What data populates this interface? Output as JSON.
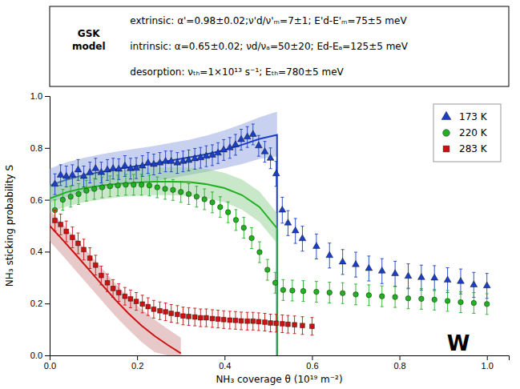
{
  "chart_data": {
    "type": "line",
    "xlabel": "NH₃ coverage θ (10¹⁹ m⁻²)",
    "ylabel": "NH₃ sticking probability S",
    "annotations": [
      "W",
      "GSK\nmodel",
      "extrinsic: α'=0.98±0.02;ν'd/ν'ₘ=7±1; E'd-E'ₘ=75±5 meV",
      "intrinsic: α=0.65±0.02; νd/νₐ=50±20; Ed-Eₐ=125±5 meV",
      "desorption: νₜₕ=1×10¹³ s⁻¹; Eₜₕ=780±5 meV"
    ],
    "xlim": [
      0.0,
      1.05
    ],
    "ylim": [
      0.0,
      1.0
    ],
    "xticks": [
      {
        "value": 0.0,
        "label": "0.0"
      },
      0.2,
      0.4,
      0.6,
      0.8,
      {
        "value": 1.0,
        "label": "1.0"
      }
    ],
    "yticks": [
      {
        "value": 0.0,
        "label": "0.0"
      },
      0.2,
      0.4,
      0.6,
      0.8,
      {
        "value": 1.0,
        "label": "1.0"
      }
    ],
    "grid": false,
    "legend": "upper right",
    "series": [
      {
        "type": "area",
        "color": "#8899dd",
        "x": [
          0.0,
          0.04,
          0.08,
          0.12,
          0.16,
          0.2,
          0.24,
          0.28,
          0.32,
          0.36,
          0.4,
          0.44,
          0.48,
          0.52
        ],
        "upper": [
          0.72,
          0.745,
          0.762,
          0.776,
          0.788,
          0.798,
          0.808,
          0.82,
          0.832,
          0.848,
          0.868,
          0.892,
          0.918,
          0.94
        ],
        "lower": [
          0.59,
          0.612,
          0.628,
          0.641,
          0.652,
          0.662,
          0.672,
          0.684,
          0.696,
          0.708,
          0.722,
          0.738,
          0.758,
          0.768
        ]
      },
      {
        "type": "line",
        "color": "#1a3fc4",
        "x": [
          0.0,
          0.04,
          0.08,
          0.12,
          0.16,
          0.2,
          0.24,
          0.28,
          0.32,
          0.36,
          0.4,
          0.44,
          0.48,
          0.52,
          0.52
        ],
        "values": [
          0.655,
          0.678,
          0.695,
          0.708,
          0.72,
          0.73,
          0.74,
          0.752,
          0.764,
          0.776,
          0.792,
          0.812,
          0.835,
          0.85,
          0.0
        ]
      },
      {
        "type": "area",
        "color": "#88cc88",
        "x": [
          0.0,
          0.04,
          0.08,
          0.12,
          0.16,
          0.2,
          0.24,
          0.28,
          0.32,
          0.36,
          0.4,
          0.44,
          0.48,
          0.52
        ],
        "upper": [
          0.658,
          0.682,
          0.697,
          0.707,
          0.714,
          0.72,
          0.724,
          0.726,
          0.724,
          0.718,
          0.704,
          0.678,
          0.632,
          0.548
        ],
        "lower": [
          0.55,
          0.575,
          0.591,
          0.602,
          0.61,
          0.615,
          0.618,
          0.618,
          0.614,
          0.605,
          0.59,
          0.562,
          0.514,
          0.432
        ]
      },
      {
        "type": "line",
        "color": "#22b022",
        "x": [
          0.0,
          0.04,
          0.08,
          0.12,
          0.16,
          0.2,
          0.24,
          0.28,
          0.32,
          0.36,
          0.4,
          0.44,
          0.48,
          0.52,
          0.52
        ],
        "values": [
          0.605,
          0.63,
          0.645,
          0.655,
          0.662,
          0.667,
          0.67,
          0.67,
          0.668,
          0.66,
          0.645,
          0.618,
          0.572,
          0.49,
          0.0
        ]
      },
      {
        "type": "area",
        "color": "#cc8888",
        "x": [
          0.0,
          0.03,
          0.06,
          0.09,
          0.12,
          0.15,
          0.18,
          0.21,
          0.24,
          0.27,
          0.3
        ],
        "upper": [
          0.56,
          0.506,
          0.45,
          0.392,
          0.334,
          0.278,
          0.224,
          0.178,
          0.138,
          0.102,
          0.068
        ],
        "lower": [
          0.44,
          0.384,
          0.326,
          0.268,
          0.21,
          0.152,
          0.1,
          0.052,
          0.012,
          0.0,
          0.0
        ]
      },
      {
        "type": "line",
        "color": "#cc1111",
        "x": [
          0.0,
          0.03,
          0.06,
          0.09,
          0.12,
          0.15,
          0.18,
          0.21,
          0.24,
          0.27,
          0.3
        ],
        "values": [
          0.5,
          0.445,
          0.388,
          0.33,
          0.272,
          0.215,
          0.162,
          0.115,
          0.075,
          0.04,
          0.008
        ]
      },
      {
        "type": "scatter",
        "name": "173 K",
        "color": "#1a3fc4",
        "marker": "triangle",
        "x": [
          0.012,
          0.025,
          0.038,
          0.052,
          0.065,
          0.078,
          0.092,
          0.105,
          0.118,
          0.132,
          0.145,
          0.158,
          0.172,
          0.185,
          0.198,
          0.212,
          0.225,
          0.238,
          0.252,
          0.265,
          0.278,
          0.292,
          0.305,
          0.318,
          0.332,
          0.345,
          0.358,
          0.372,
          0.385,
          0.398,
          0.412,
          0.425,
          0.438,
          0.452,
          0.465,
          0.478,
          0.492,
          0.505,
          0.518,
          0.532,
          0.545,
          0.562,
          0.578,
          0.61,
          0.64,
          0.67,
          0.7,
          0.73,
          0.76,
          0.79,
          0.82,
          0.85,
          0.88,
          0.91,
          0.94,
          0.97,
          1.0
        ],
        "values": [
          0.66,
          0.695,
          0.69,
          0.695,
          0.715,
          0.69,
          0.705,
          0.72,
          0.705,
          0.715,
          0.72,
          0.718,
          0.73,
          0.72,
          0.722,
          0.73,
          0.742,
          0.736,
          0.742,
          0.748,
          0.748,
          0.742,
          0.748,
          0.752,
          0.758,
          0.762,
          0.768,
          0.772,
          0.78,
          0.792,
          0.8,
          0.812,
          0.832,
          0.842,
          0.852,
          0.808,
          0.785,
          0.76,
          0.7,
          0.56,
          0.51,
          0.48,
          0.45,
          0.42,
          0.385,
          0.36,
          0.35,
          0.335,
          0.325,
          0.315,
          0.305,
          0.3,
          0.298,
          0.29,
          0.285,
          0.272,
          0.268
        ],
        "errors": [
          0.04,
          0.04,
          0.04,
          0.04,
          0.04,
          0.04,
          0.04,
          0.04,
          0.04,
          0.04,
          0.04,
          0.04,
          0.04,
          0.04,
          0.04,
          0.04,
          0.04,
          0.04,
          0.04,
          0.04,
          0.04,
          0.04,
          0.04,
          0.04,
          0.04,
          0.04,
          0.04,
          0.04,
          0.04,
          0.04,
          0.04,
          0.04,
          0.04,
          0.04,
          0.04,
          0.04,
          0.04,
          0.04,
          0.048,
          0.05,
          0.048,
          0.048,
          0.048,
          0.048,
          0.048,
          0.048,
          0.048,
          0.048,
          0.048,
          0.048,
          0.048,
          0.048,
          0.048,
          0.048,
          0.048,
          0.048,
          0.048
        ]
      },
      {
        "type": "scatter",
        "name": "220 K",
        "color": "#22b022",
        "marker": "circle",
        "x": [
          0.012,
          0.03,
          0.048,
          0.066,
          0.084,
          0.102,
          0.12,
          0.138,
          0.156,
          0.174,
          0.192,
          0.21,
          0.228,
          0.246,
          0.264,
          0.282,
          0.3,
          0.318,
          0.336,
          0.354,
          0.372,
          0.39,
          0.408,
          0.426,
          0.444,
          0.462,
          0.48,
          0.498,
          0.516,
          0.534,
          0.555,
          0.58,
          0.61,
          0.64,
          0.67,
          0.7,
          0.73,
          0.76,
          0.79,
          0.82,
          0.85,
          0.88,
          0.91,
          0.94,
          0.97,
          1.0
        ],
        "values": [
          0.56,
          0.6,
          0.612,
          0.622,
          0.635,
          0.642,
          0.648,
          0.652,
          0.655,
          0.658,
          0.658,
          0.658,
          0.655,
          0.648,
          0.642,
          0.638,
          0.63,
          0.622,
          0.612,
          0.602,
          0.59,
          0.572,
          0.552,
          0.522,
          0.492,
          0.452,
          0.398,
          0.33,
          0.28,
          0.252,
          0.25,
          0.248,
          0.245,
          0.242,
          0.24,
          0.235,
          0.232,
          0.228,
          0.225,
          0.22,
          0.218,
          0.215,
          0.21,
          0.205,
          0.202,
          0.198
        ],
        "errors": [
          0.04,
          0.04,
          0.04,
          0.04,
          0.04,
          0.04,
          0.04,
          0.04,
          0.04,
          0.04,
          0.04,
          0.04,
          0.04,
          0.04,
          0.04,
          0.04,
          0.04,
          0.04,
          0.04,
          0.04,
          0.04,
          0.04,
          0.04,
          0.04,
          0.04,
          0.04,
          0.04,
          0.04,
          0.04,
          0.04,
          0.04,
          0.04,
          0.04,
          0.04,
          0.04,
          0.04,
          0.04,
          0.04,
          0.04,
          0.04,
          0.04,
          0.04,
          0.04,
          0.04,
          0.04,
          0.04
        ]
      },
      {
        "type": "scatter",
        "name": "283 K",
        "color": "#cc1111",
        "marker": "square",
        "x": [
          0.012,
          0.025,
          0.038,
          0.052,
          0.065,
          0.078,
          0.092,
          0.105,
          0.118,
          0.132,
          0.145,
          0.158,
          0.172,
          0.185,
          0.198,
          0.212,
          0.225,
          0.238,
          0.252,
          0.265,
          0.278,
          0.292,
          0.305,
          0.318,
          0.332,
          0.345,
          0.358,
          0.372,
          0.385,
          0.398,
          0.412,
          0.425,
          0.438,
          0.452,
          0.465,
          0.478,
          0.492,
          0.505,
          0.518,
          0.532,
          0.545,
          0.56,
          0.578,
          0.6
        ],
        "values": [
          0.52,
          0.505,
          0.478,
          0.455,
          0.432,
          0.408,
          0.375,
          0.348,
          0.308,
          0.28,
          0.258,
          0.242,
          0.228,
          0.218,
          0.208,
          0.198,
          0.188,
          0.178,
          0.172,
          0.168,
          0.162,
          0.158,
          0.152,
          0.15,
          0.148,
          0.145,
          0.145,
          0.142,
          0.14,
          0.138,
          0.136,
          0.135,
          0.133,
          0.132,
          0.132,
          0.13,
          0.128,
          0.125,
          0.124,
          0.122,
          0.12,
          0.118,
          0.115,
          0.112
        ],
        "errors": [
          0.04,
          0.04,
          0.04,
          0.04,
          0.04,
          0.04,
          0.04,
          0.038,
          0.036,
          0.034,
          0.034,
          0.034,
          0.034,
          0.034,
          0.034,
          0.034,
          0.034,
          0.034,
          0.034,
          0.034,
          0.034,
          0.034,
          0.034,
          0.034,
          0.034,
          0.034,
          0.034,
          0.034,
          0.034,
          0.034,
          0.034,
          0.034,
          0.034,
          0.034,
          0.034,
          0.034,
          0.034,
          0.034,
          0.034,
          0.034,
          0.034,
          0.034,
          0.034,
          0.034
        ]
      }
    ]
  }
}
